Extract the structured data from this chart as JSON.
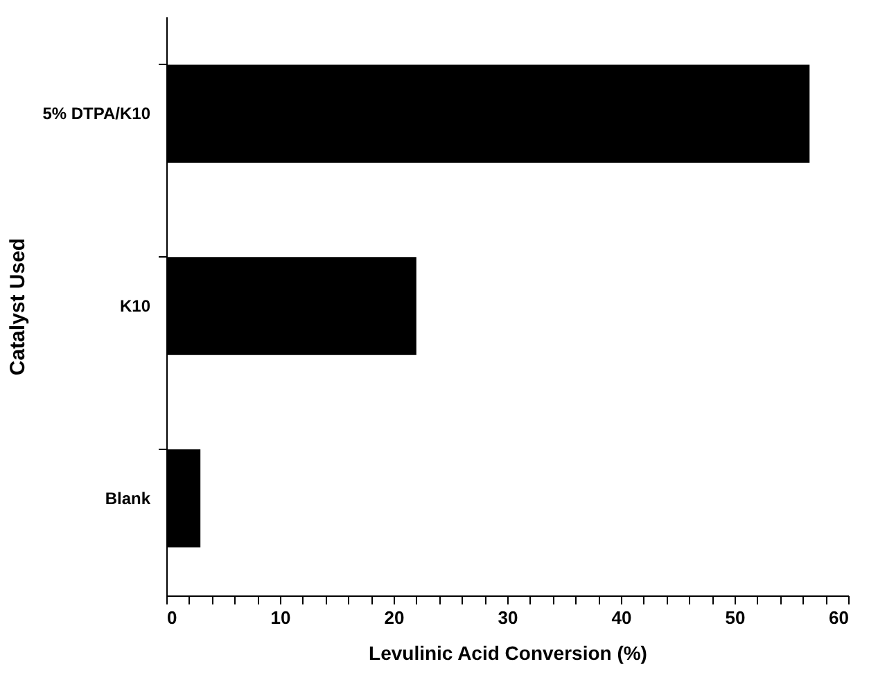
{
  "chart_data": {
    "type": "bar",
    "orientation": "horizontal",
    "xlabel": "Levulinic Acid Conversion (%)",
    "ylabel": "Catalyst Used",
    "categories": [
      "5% DTPA/K10",
      "K10",
      "Blank"
    ],
    "values": [
      56.6,
      22.0,
      3.0
    ],
    "color": "#000000",
    "xlim": [
      0,
      60
    ],
    "xticks": [
      0,
      {
        "value": 2,
        "label": null
      },
      {
        "value": 4,
        "label": null
      },
      {
        "value": 6,
        "label": null
      },
      {
        "value": 8,
        "label": null
      },
      10,
      {
        "value": 12,
        "label": null
      },
      {
        "value": 14,
        "label": null
      },
      {
        "value": 16,
        "label": null
      },
      {
        "value": 18,
        "label": null
      },
      20,
      {
        "value": 22,
        "label": null
      },
      {
        "value": 24,
        "label": null
      },
      {
        "value": 26,
        "label": null
      },
      {
        "value": 28,
        "label": null
      },
      30,
      {
        "value": 32,
        "label": null
      },
      {
        "value": 34,
        "label": null
      },
      {
        "value": 36,
        "label": null
      },
      {
        "value": 38,
        "label": null
      },
      40,
      {
        "value": 42,
        "label": null
      },
      {
        "value": 44,
        "label": null
      },
      {
        "value": 46,
        "label": null
      },
      {
        "value": 48,
        "label": null
      },
      50,
      {
        "value": 52,
        "label": null
      },
      {
        "value": 54,
        "label": null
      },
      {
        "value": 56,
        "label": null
      },
      {
        "value": 58,
        "label": null
      },
      60
    ],
    "grid": false
  }
}
